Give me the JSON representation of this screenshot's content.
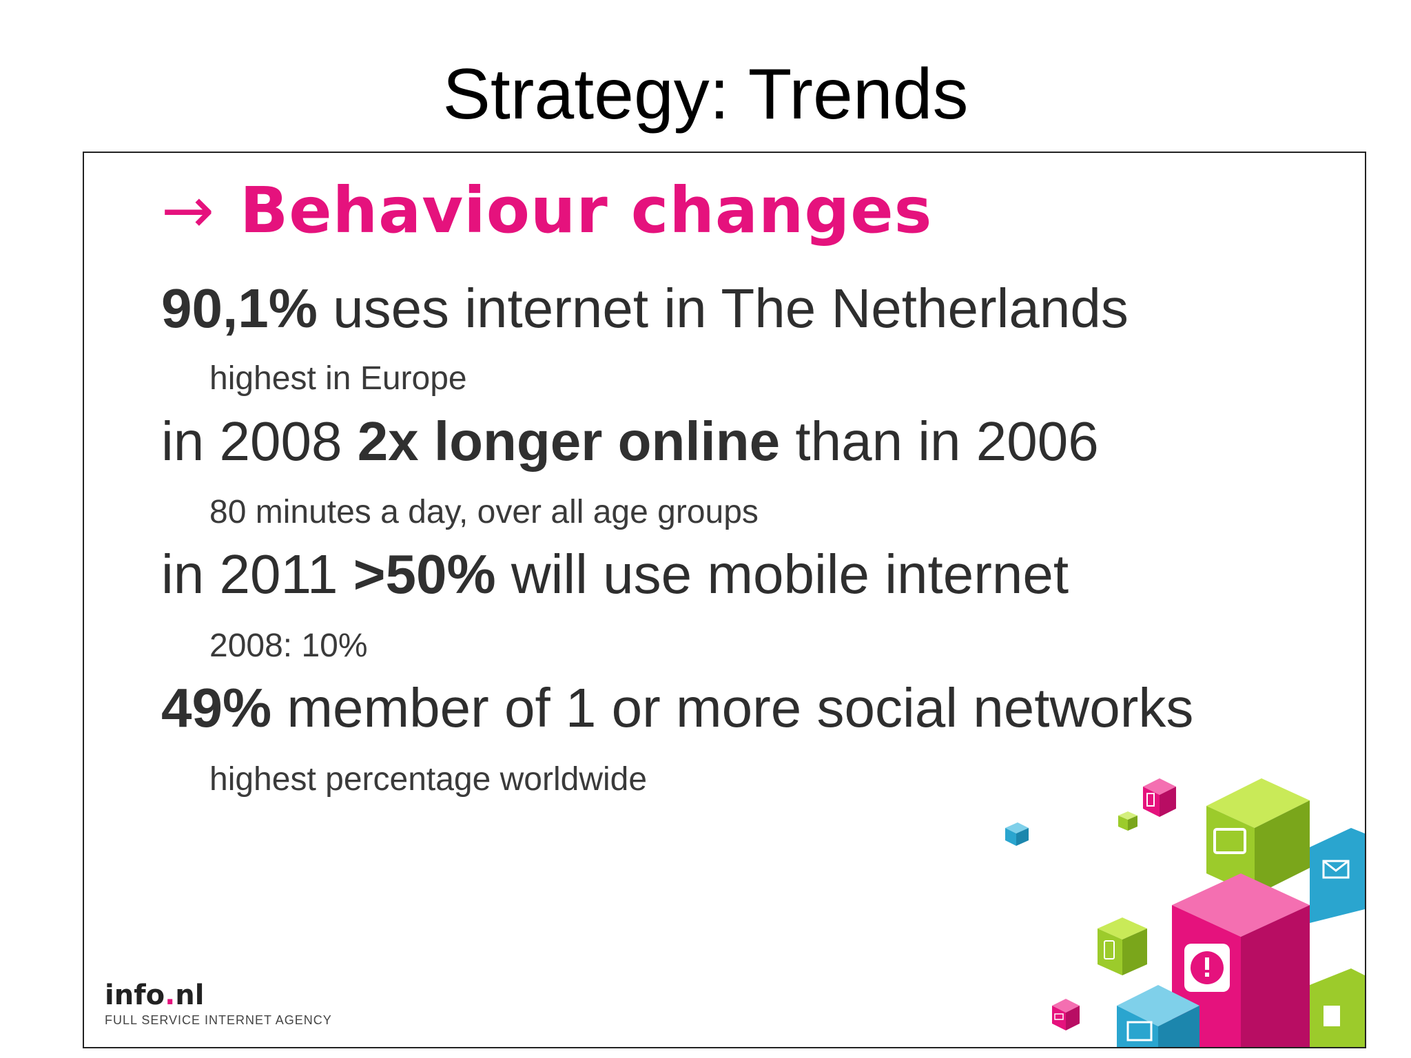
{
  "title": "Strategy: Trends",
  "slide": {
    "heading": "Behaviour changes",
    "heading_arrow": "→",
    "accent_color": "#e5127d",
    "items": [
      {
        "parts": [
          {
            "text": "90,1%",
            "bold": true
          },
          {
            "text": " uses internet in The Netherlands",
            "bold": false
          }
        ],
        "sub": "highest in Europe"
      },
      {
        "parts": [
          {
            "text": "in 2008 ",
            "bold": false
          },
          {
            "text": "2x longer online",
            "bold": true
          },
          {
            "text": " than in 2006",
            "bold": false
          }
        ],
        "sub": "80 minutes a day, over all age groups"
      },
      {
        "parts": [
          {
            "text": "in 2011 ",
            "bold": false
          },
          {
            "text": ">50%",
            "bold": true
          },
          {
            "text": " will use mobile internet",
            "bold": false
          }
        ],
        "sub": "2008: 10%"
      },
      {
        "parts": [
          {
            "text": "49%",
            "bold": true
          },
          {
            "text": " member of 1 or more social networks",
            "bold": false
          }
        ],
        "sub": "highest percentage worldwide"
      }
    ],
    "logo": {
      "name_part1": "info",
      "name_dot": ".",
      "name_part2": "nl",
      "tagline": "FULL SERVICE INTERNET AGENCY"
    },
    "cube_colors": {
      "pink": "#e5127d",
      "green": "#9ccb2b",
      "blue": "#2aa5cf"
    },
    "cube_icons": [
      "phone-icon",
      "monitor-icon",
      "mail-icon",
      "alert-icon",
      "document-icon"
    ]
  }
}
